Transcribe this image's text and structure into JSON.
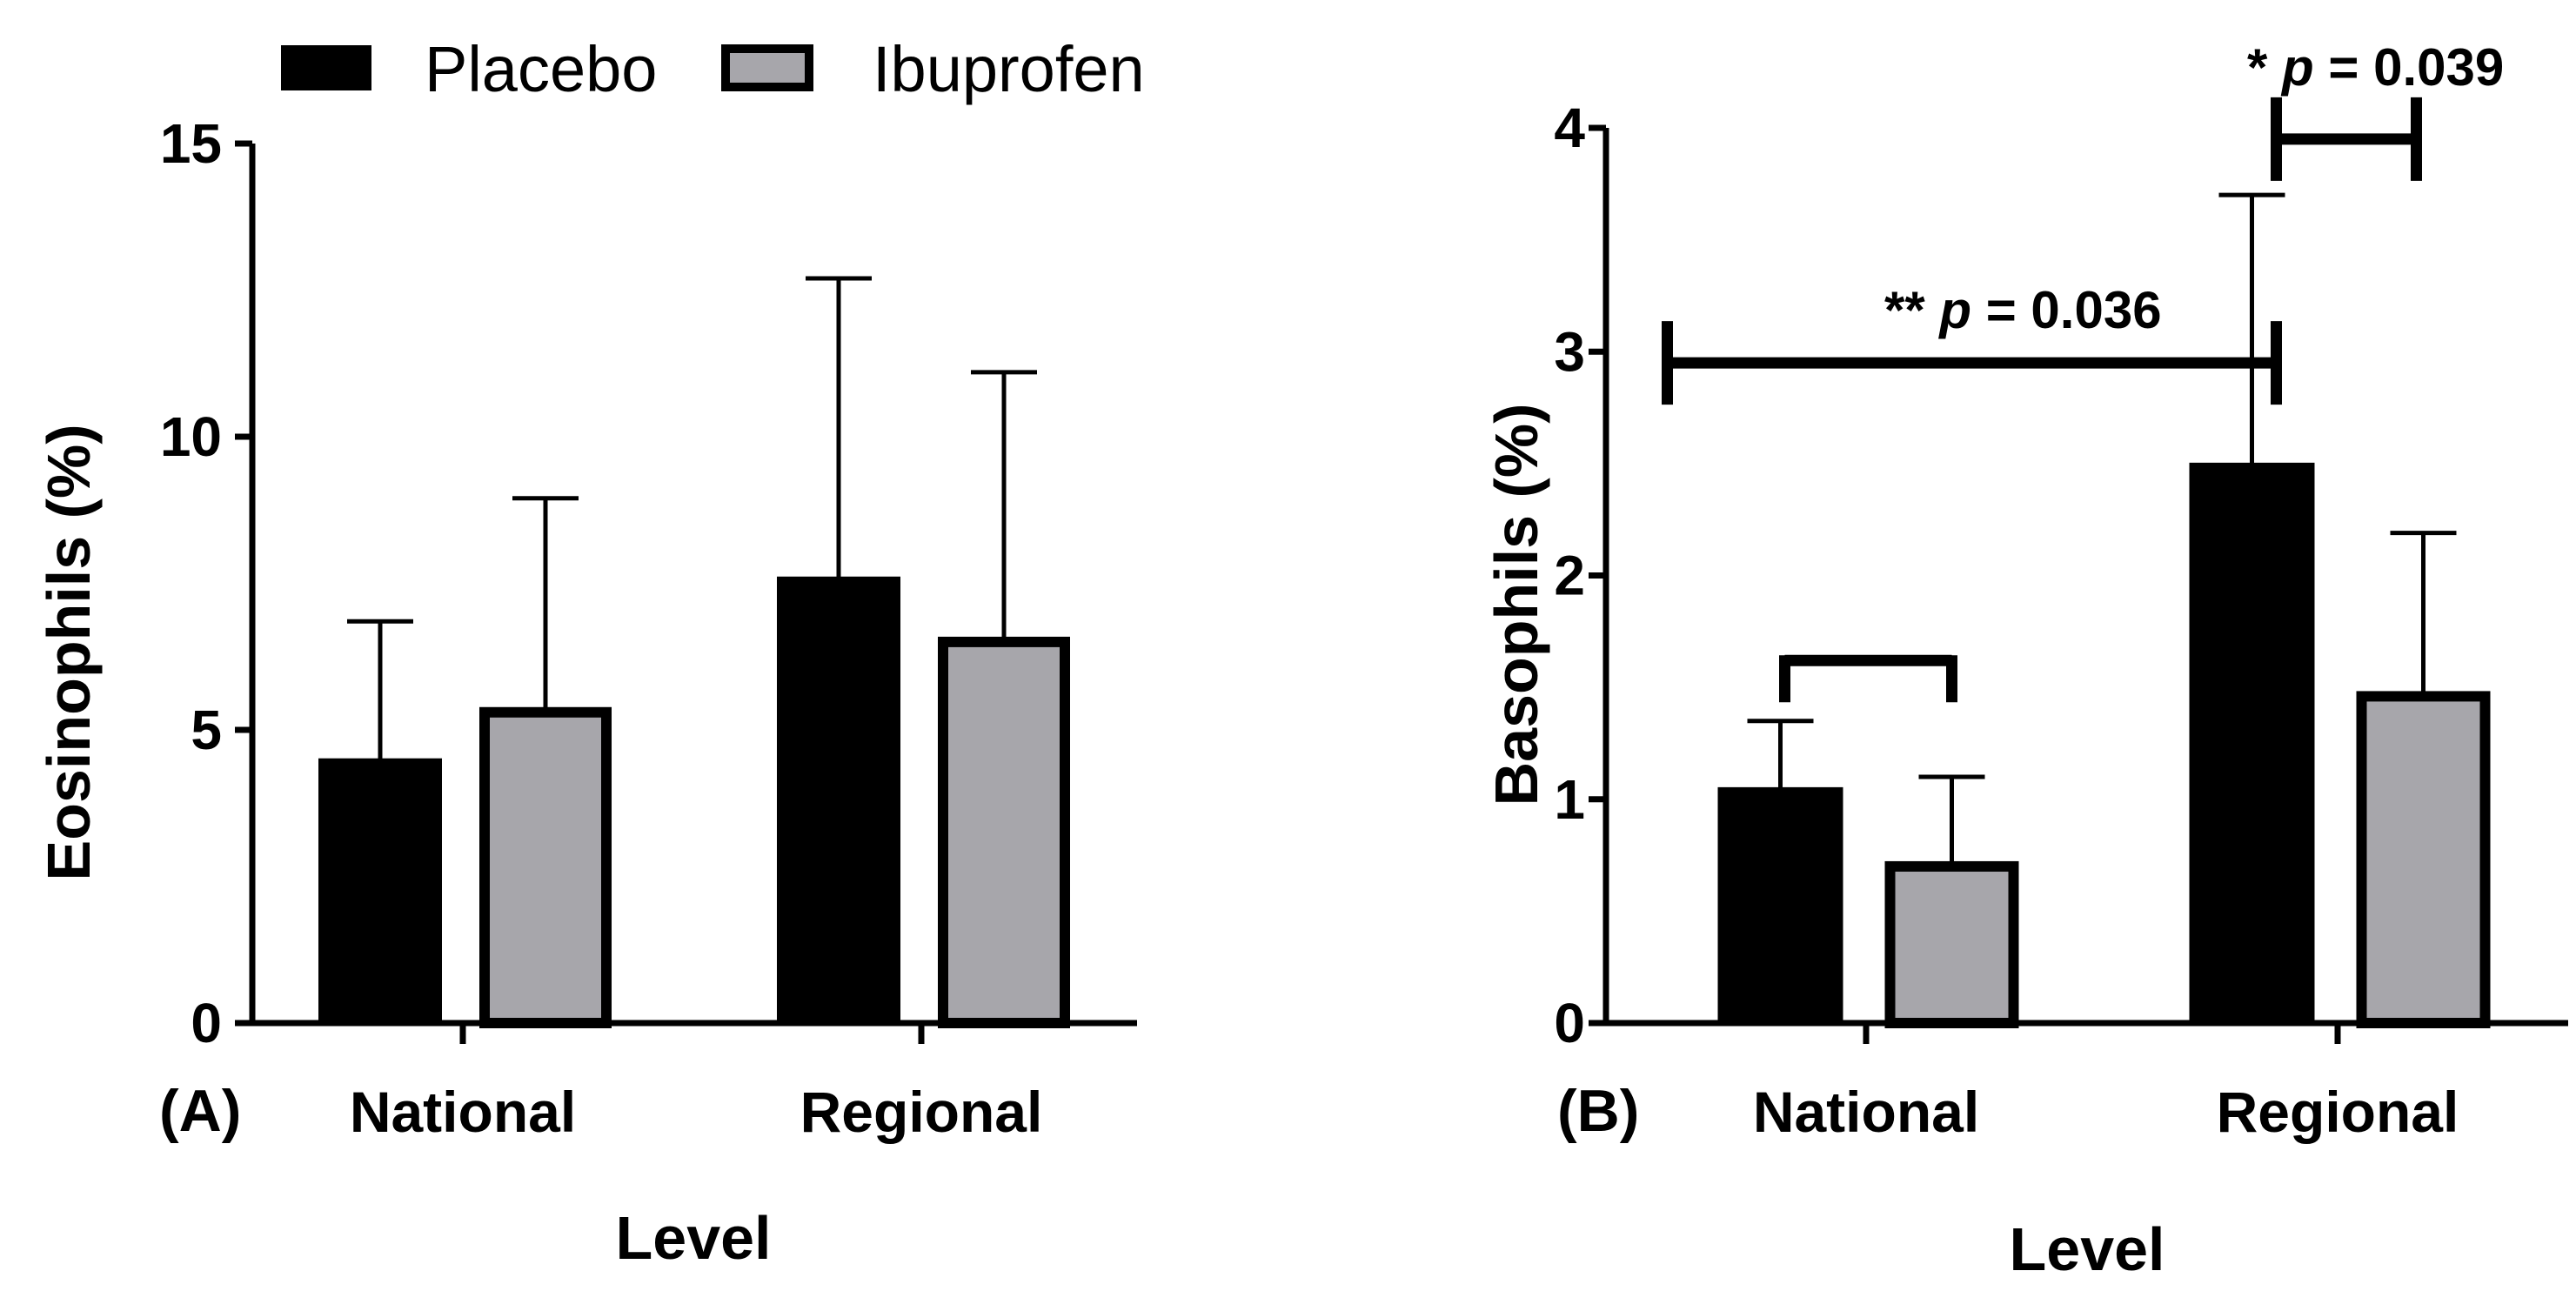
{
  "legend": [
    {
      "name": "Placebo",
      "color": "#000000"
    },
    {
      "name": "Ibuprofen",
      "color": "#a7a6ab"
    }
  ],
  "chart_data": [
    {
      "type": "bar",
      "panel_label": "(A)",
      "title": "",
      "xlabel": "Level",
      "ylabel": "Eosinophils (%)",
      "ylim": [
        0,
        15
      ],
      "yticks": [
        "0",
        "5",
        "10",
        "15"
      ],
      "categories": [
        "National",
        "Regional"
      ],
      "series": [
        {
          "name": "Placebo",
          "values": [
            4.5,
            7.6
          ],
          "error": [
            2.35,
            5.1
          ]
        },
        {
          "name": "Ibuprofen",
          "values": [
            5.3,
            6.5
          ],
          "error": [
            3.65,
            4.6
          ]
        }
      ],
      "annotations": []
    },
    {
      "type": "bar",
      "panel_label": "(B)",
      "title": "",
      "xlabel": "Level",
      "ylabel": "Basophils (%)",
      "ylim": [
        0,
        4
      ],
      "yticks": [
        "0",
        "1",
        "2",
        "3",
        "4"
      ],
      "categories": [
        "National",
        "Regional"
      ],
      "series": [
        {
          "name": "Placebo",
          "values": [
            1.05,
            2.5
          ],
          "error": [
            0.3,
            1.2
          ]
        },
        {
          "name": "Ibuprofen",
          "values": [
            0.7,
            1.46
          ],
          "error": [
            0.4,
            0.73
          ]
        }
      ],
      "annotations": [
        {
          "text_prefix": "**",
          "text_p": "p",
          "text_value": "= 0.036",
          "from": "National Placebo",
          "to": "Regional Placebo"
        },
        {
          "text_prefix": "*",
          "text_p": "p",
          "text_value": "= 0.039",
          "from": "Regional Placebo",
          "to": "Regional Ibuprofen"
        },
        {
          "text_prefix": "",
          "text_p": "",
          "text_value": "",
          "from": "National Placebo",
          "to": "National Ibuprofen"
        }
      ]
    }
  ]
}
